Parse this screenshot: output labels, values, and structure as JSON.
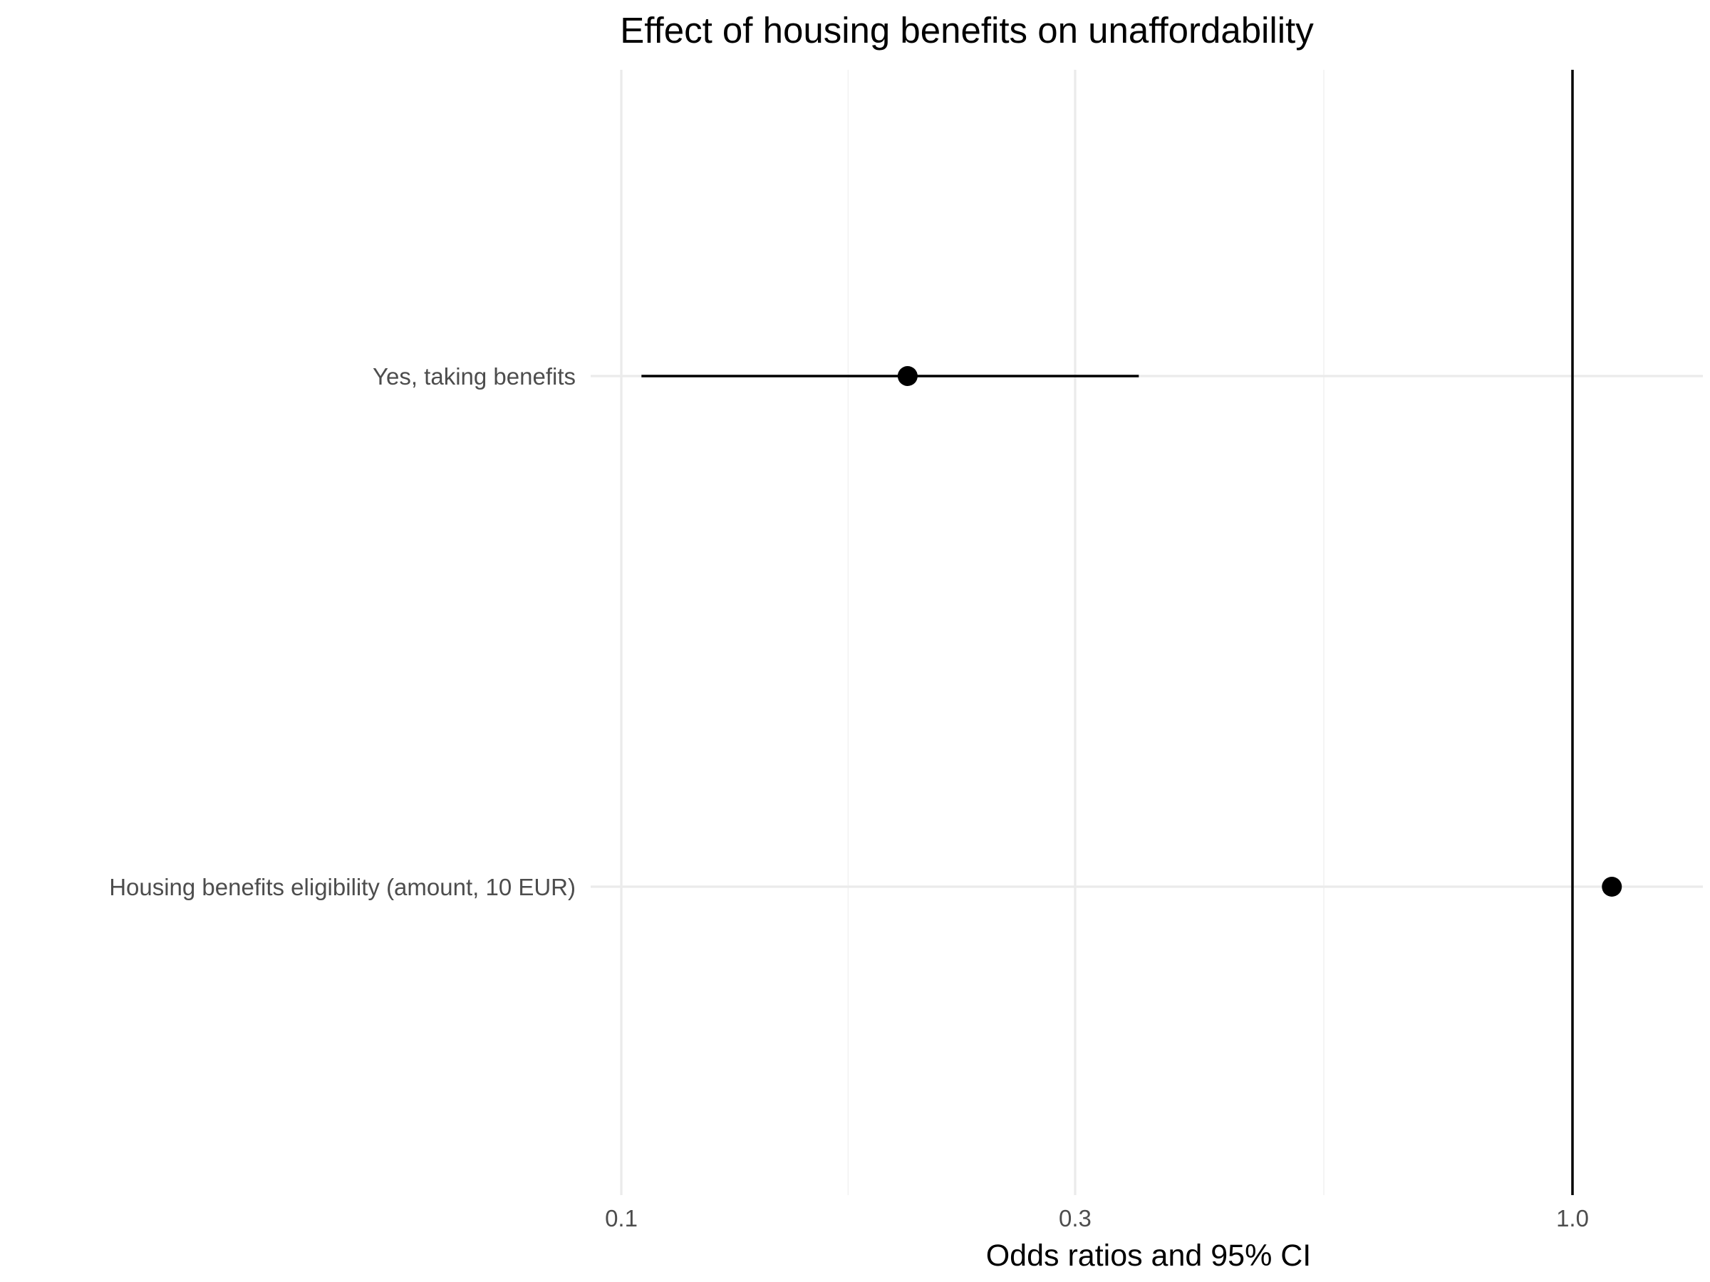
{
  "chart_data": {
    "type": "scatter",
    "title": "Effect of housing benefits on unaffordability",
    "xlabel": "Odds ratios and 95% CI",
    "ylabel": "",
    "x_scale": "log10",
    "xlim": [
      0.1,
      1.15
    ],
    "x_ticks": [
      {
        "value": 0.1,
        "label": "0.1"
      },
      {
        "value": 0.3,
        "label": "0.3"
      },
      {
        "value": 1.0,
        "label": "1.0"
      }
    ],
    "x_minor_ticks": [
      0.1732,
      0.5477
    ],
    "reference_line_x": 1.0,
    "grid": true,
    "legend": "none",
    "colors": {
      "points": "#000000",
      "grid": "#ebebeb",
      "reference": "#000000"
    },
    "categories": [
      "Yes, taking benefits",
      "Housing benefits eligibility (amount, 10 EUR)"
    ],
    "estimates": [
      {
        "term": "Yes, taking benefits",
        "estimate": 0.2,
        "ci_low": 0.105,
        "ci_high": 0.35
      },
      {
        "term": "Housing benefits eligibility (amount, 10 EUR)",
        "estimate": 1.1,
        "ci_low": 1.098,
        "ci_high": 1.102
      }
    ]
  }
}
